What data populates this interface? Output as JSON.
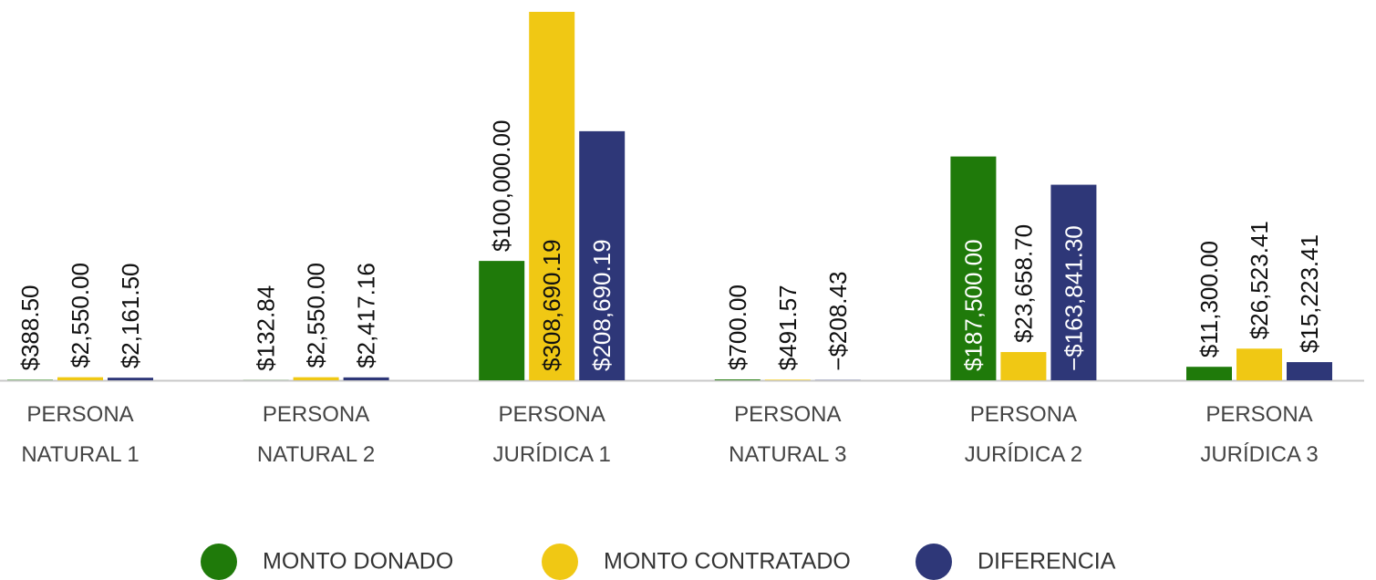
{
  "chart_data": {
    "type": "bar",
    "categories": [
      [
        "PERSONA",
        "NATURAL 1"
      ],
      [
        "PERSONA",
        "NATURAL 2"
      ],
      [
        "PERSONA",
        "JURÍDICA 1"
      ],
      [
        "PERSONA",
        "NATURAL 3"
      ],
      [
        "PERSONA",
        "JURÍDICA 2"
      ],
      [
        "PERSONA",
        "JURÍDICA 3"
      ]
    ],
    "series": [
      {
        "name": "MONTO DONADO",
        "color": "#1f7a0a",
        "values": [
          388.5,
          132.84,
          100000.0,
          700.0,
          187500.0,
          11300.0
        ],
        "value_labels": [
          "$388.50",
          "$132.84",
          "$100,000.00",
          "$700.00",
          "$187,500.00",
          "$11,300.00"
        ]
      },
      {
        "name": "MONTO CONTRATADO",
        "color": "#f0c814",
        "values": [
          2550.0,
          2550.0,
          308690.19,
          491.57,
          23658.7,
          26523.41
        ],
        "value_labels": [
          "$2,550.00",
          "$2,550.00",
          "$308,690.19",
          "$491.57",
          "$23,658.70",
          "$26,523.41"
        ]
      },
      {
        "name": "DIFERENCIA",
        "color": "#2e3778",
        "values": [
          2161.5,
          2417.16,
          208690.19,
          -208.43,
          -163841.3,
          15223.41
        ],
        "value_labels": [
          "$2,161.50",
          "$2,417.16",
          "$208,690.19",
          "−$208.43",
          "−$163,841.30",
          "$15,223.41"
        ]
      }
    ],
    "legend": "bottom"
  }
}
